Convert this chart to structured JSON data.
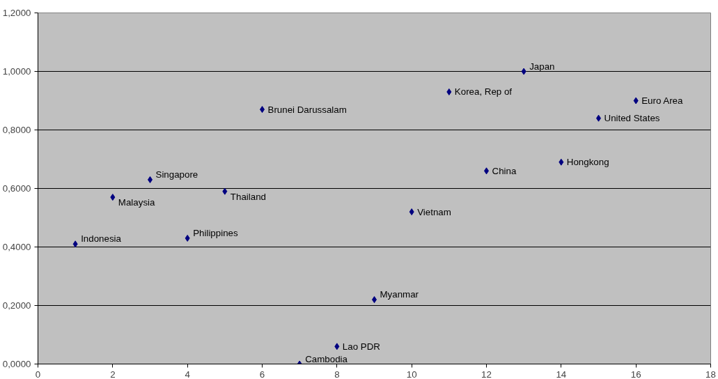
{
  "chart_data": {
    "type": "scatter",
    "marker": "diamond",
    "grid": "y",
    "x": [
      1,
      2,
      3,
      4,
      5,
      6,
      7,
      8,
      9,
      10,
      11,
      12,
      13,
      14,
      15,
      16
    ],
    "series": [
      {
        "color": "#000080",
        "values": [
          0.41,
          0.57,
          0.63,
          0.43,
          0.59,
          0.87,
          0.0,
          0.06,
          0.22,
          0.52,
          0.93,
          0.66,
          1.0,
          0.69,
          0.84,
          0.9
        ]
      }
    ],
    "annotations": [
      {
        "text": "Indonesia",
        "x": 1,
        "y": 0.41
      },
      {
        "text": "Malaysia",
        "x": 2,
        "y": 0.57
      },
      {
        "text": "Singapore",
        "x": 3,
        "y": 0.63
      },
      {
        "text": "Philippines",
        "x": 4,
        "y": 0.43
      },
      {
        "text": "Thailand",
        "x": 5,
        "y": 0.59
      },
      {
        "text": "Brunei Darussalam",
        "x": 6,
        "y": 0.87
      },
      {
        "text": "Cambodia",
        "x": 7,
        "y": 0.0
      },
      {
        "text": "Lao PDR",
        "x": 8,
        "y": 0.06
      },
      {
        "text": "Myanmar",
        "x": 9,
        "y": 0.22
      },
      {
        "text": "Vietnam",
        "x": 10,
        "y": 0.52
      },
      {
        "text": "Korea, Rep of",
        "x": 11,
        "y": 0.93
      },
      {
        "text": "China",
        "x": 12,
        "y": 0.66
      },
      {
        "text": "Japan",
        "x": 13,
        "y": 1.0
      },
      {
        "text": "Hongkong",
        "x": 14,
        "y": 0.69
      },
      {
        "text": "United States",
        "x": 15,
        "y": 0.84
      },
      {
        "text": "Euro Area",
        "x": 16,
        "y": 0.9
      }
    ],
    "xlim": [
      0,
      18
    ],
    "xticks": [
      0,
      2,
      4,
      6,
      8,
      10,
      12,
      14,
      16,
      18
    ],
    "ylim": [
      0,
      1.2
    ],
    "yticks": [
      {
        "value": 0,
        "label": "0,0000"
      },
      {
        "value": 0.2,
        "label": "0,2000"
      },
      {
        "value": 0.4,
        "label": "0,4000"
      },
      {
        "value": 0.6,
        "label": "0,6000"
      },
      {
        "value": 0.8,
        "label": "0,8000"
      },
      {
        "value": 1.0,
        "label": "1,0000"
      },
      {
        "value": 1.2,
        "label": "1,2000"
      }
    ]
  }
}
